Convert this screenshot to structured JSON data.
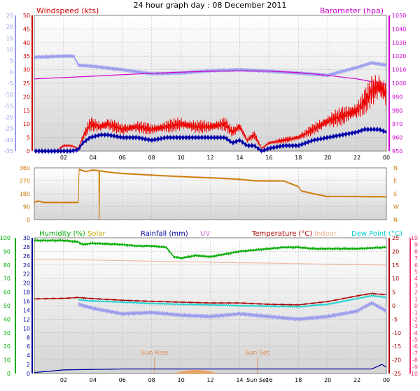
{
  "title": "24 hour graph day : 08 December 2011",
  "colors": {
    "wind": "#ee0000",
    "gust_avg": "#0000aa",
    "baro": "#cc00cc",
    "temp_left": "#9999ee",
    "dir": "#cc7700",
    "hum": "#00aa00",
    "solar": "#ccaa00",
    "rain": "#000099",
    "uv": "#cc66cc",
    "temp": "#aa0000",
    "indoor": "#f0b090",
    "dew": "#00cccc",
    "pink": "#ee3377",
    "sun": "#e08848",
    "grid": "#aaaaaa",
    "bg_top": "#ffffff",
    "bg_bottom": "#d8d8d8"
  },
  "chart_data": [
    {
      "type": "line",
      "name": "wind-barometer",
      "x_ticks": [
        "02",
        "04",
        "06",
        "08",
        "10",
        "12",
        "14",
        "16",
        "18",
        "20",
        "22",
        "00"
      ],
      "left_label": "Windspeed (kts)",
      "left_ticks": [
        "0",
        "5",
        "10",
        "15",
        "20",
        "25",
        "30",
        "35",
        "40",
        "45",
        "50"
      ],
      "outer_left_ticks": [
        "-35",
        "-30",
        "-25",
        "-20",
        "-15",
        "-10",
        "-5",
        "0",
        "5",
        "10",
        "15",
        "20",
        "25"
      ],
      "right_label": "Barometer (hpa)",
      "right_ticks": [
        "950",
        "960",
        "970",
        "980",
        "990",
        "1000",
        "1010",
        "1020",
        "1030",
        "1040",
        "1050"
      ],
      "ylim": [
        0,
        50
      ],
      "series": [
        {
          "key": "wind",
          "x": [
            0,
            1,
            1.5,
            2,
            2.5,
            3,
            3.3,
            3.8,
            4.5,
            5,
            6,
            7,
            8,
            9,
            10,
            11,
            12,
            13,
            13.5,
            14,
            14.5,
            15,
            15.5,
            16,
            17,
            18,
            19,
            20,
            21,
            22,
            22.5,
            23,
            23.5,
            24
          ],
          "y": [
            0,
            0,
            0,
            2,
            2,
            1,
            5,
            10,
            9,
            10,
            8,
            9,
            8,
            9,
            10,
            9,
            9,
            10,
            7,
            9,
            4,
            6,
            1,
            3,
            4,
            5,
            8,
            11,
            13,
            15,
            18,
            22,
            24,
            21
          ]
        },
        {
          "key": "gust_avg",
          "x": [
            0,
            1,
            1.5,
            2,
            2.5,
            3,
            3.3,
            3.8,
            4.5,
            5,
            6,
            7,
            8,
            9,
            10,
            11,
            12,
            13,
            13.5,
            14,
            14.5,
            15,
            15.5,
            16,
            17,
            18,
            19,
            20,
            21,
            22,
            22.5,
            23,
            23.5,
            24
          ],
          "y": [
            0,
            0,
            0,
            0,
            0,
            0.5,
            3,
            5,
            6,
            6,
            5,
            5,
            4,
            5,
            5,
            5,
            5,
            5,
            3,
            4,
            2,
            2,
            0,
            1,
            2,
            2,
            4,
            5,
            6,
            7,
            8,
            8,
            8,
            7
          ]
        },
        {
          "key": "baro",
          "x": [
            0,
            2,
            4,
            6,
            8,
            10,
            12,
            14,
            16,
            18,
            20,
            22,
            24
          ],
          "y": [
            1003.2,
            1004.2,
            1005.2,
            1006.3,
            1007.3,
            1008.2,
            1008.8,
            1009.1,
            1008.9,
            1007.9,
            1005.8,
            1003.2,
            999.2
          ]
        },
        {
          "key": "temp_left",
          "x": [
            0,
            2,
            2.7,
            3,
            4,
            6,
            8,
            10,
            12,
            14,
            16,
            18,
            20,
            22,
            23,
            24
          ],
          "y": [
            6.5,
            7,
            7,
            3,
            2.5,
            1,
            -0.8,
            -0.5,
            0.5,
            1,
            0.3,
            -0.5,
            -1.5,
            2,
            4,
            3
          ]
        }
      ]
    },
    {
      "type": "line",
      "name": "wind-direction",
      "left_ticks": [
        "0",
        "90",
        "180",
        "270",
        "360"
      ],
      "right_ticks": [
        "N",
        "W",
        "S",
        "E",
        "N"
      ],
      "ylim": [
        0,
        360
      ],
      "series": [
        {
          "key": "dir",
          "x": [
            0,
            0.3,
            0.6,
            1,
            2,
            3,
            3.05,
            3.5,
            4,
            4.4,
            4.42,
            4.46,
            5,
            6,
            8,
            10,
            12,
            14,
            15,
            16,
            16.5,
            17,
            18,
            18.2,
            19,
            20,
            22,
            24
          ],
          "y": [
            120,
            130,
            120,
            120,
            120,
            120,
            350,
            335,
            345,
            340,
            0,
            340,
            330,
            320,
            310,
            300,
            290,
            280,
            270,
            270,
            270,
            270,
            230,
            200,
            180,
            160,
            160,
            160
          ]
        }
      ]
    },
    {
      "type": "line",
      "name": "humidity-temperature",
      "legend": [
        "Humidity (%)",
        "Solar",
        "Rainfall (mm)",
        "UV",
        "Temperature (°C)",
        "Indoor",
        "Dew Point (°C)"
      ],
      "left_ticks": [
        "0",
        "10",
        "20",
        "30",
        "40",
        "50",
        "60",
        "70",
        "80",
        "90",
        "100"
      ],
      "left2_ticks": [
        "0",
        "2",
        "4",
        "6",
        "8",
        "10",
        "12",
        "14",
        "16",
        "18",
        "20",
        "22",
        "24",
        "26",
        "28",
        "30"
      ],
      "right_ticks": [
        "-25",
        "-20",
        "-15",
        "-10",
        "-5",
        "0",
        "5",
        "10",
        "15",
        "20",
        "25"
      ],
      "right2_ticks": [
        "-10",
        "-9",
        "-8",
        "-7",
        "-6",
        "-5",
        "-4",
        "-3",
        "-2",
        "-1",
        "0",
        "1",
        "2",
        "3",
        "4",
        "5",
        "6",
        "7",
        "8",
        "9",
        "10"
      ],
      "annotations": [
        "Sun Rise",
        "Sun Set"
      ],
      "x_ticks": [
        "02",
        "04",
        "06",
        "08",
        "10",
        "12",
        "14",
        "Sun Set",
        "16",
        "18",
        "20",
        "22",
        "00"
      ],
      "ylim": [
        -25,
        25
      ],
      "series": [
        {
          "key": "hum",
          "x": [
            0,
            1,
            2,
            3,
            3.3,
            4,
            6,
            7,
            8,
            9,
            9.5,
            10,
            11,
            12,
            13,
            14,
            16,
            17,
            18,
            19,
            20,
            22,
            24
          ],
          "y": [
            98,
            98,
            98,
            97,
            95,
            96,
            95,
            94,
            94,
            93,
            86,
            85,
            87,
            86,
            88,
            90,
            92,
            93,
            93,
            92,
            92,
            92,
            93
          ]
        },
        {
          "key": "temp",
          "x": [
            0,
            2,
            3,
            4,
            6,
            8,
            10,
            12,
            14,
            16,
            18,
            20,
            22,
            23,
            24
          ],
          "y": [
            2.5,
            2.7,
            3,
            2.6,
            2,
            1.6,
            1.3,
            1,
            1,
            0.5,
            0.3,
            1.5,
            3.6,
            4.5,
            4
          ]
        },
        {
          "key": "dew",
          "x": [
            3,
            4,
            6,
            8,
            10,
            12,
            14,
            16,
            18,
            20,
            22,
            23,
            24
          ],
          "y": [
            2.2,
            1.7,
            1.3,
            0.8,
            0.5,
            0.3,
            0,
            -0.2,
            -0.4,
            0.5,
            2.6,
            3.7,
            3
          ]
        },
        {
          "key": "indoor",
          "x": [
            0,
            2,
            4,
            6,
            8,
            10,
            12,
            14,
            16,
            18,
            20,
            22,
            24
          ],
          "y": [
            17,
            17,
            16.8,
            16.6,
            16.4,
            16.2,
            16,
            15.8,
            15.7,
            15.5,
            15.3,
            15.1,
            15
          ]
        },
        {
          "key": "temp_left",
          "x": [
            3,
            4,
            6,
            8,
            10,
            12,
            14,
            16,
            18,
            20,
            22,
            23,
            24
          ],
          "y": [
            0.5,
            -1,
            -3,
            -2.5,
            -3.5,
            -4,
            -3,
            -4,
            -5,
            -4,
            -2,
            1,
            -2
          ]
        },
        {
          "key": "rain",
          "x": [
            0,
            2,
            4,
            6,
            8,
            10,
            12,
            14,
            16,
            18,
            20,
            22,
            23,
            23.7,
            24
          ],
          "y": [
            0.2,
            0.8,
            0.9,
            1,
            1,
            1,
            1,
            1,
            1,
            1,
            1,
            1,
            1,
            2,
            1.4
          ]
        }
      ]
    }
  ]
}
